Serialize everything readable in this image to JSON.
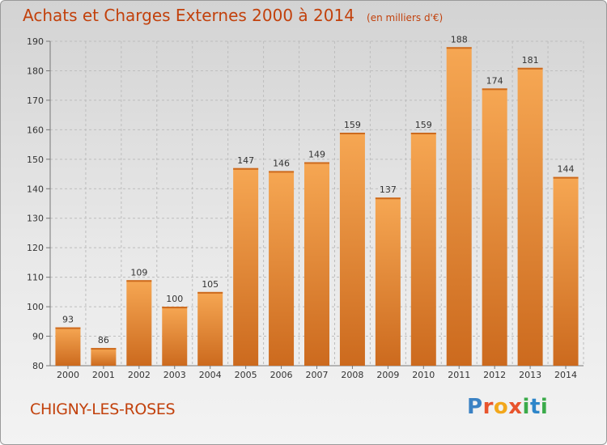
{
  "header": {
    "title": "Achats et Charges Externes 2000 à 2014",
    "unit": "(en milliers d'€)"
  },
  "footer": {
    "place": "CHIGNY-LES-ROSES",
    "brand": "Proxiti",
    "brand_colors": [
      "#3b82c4",
      "#e8542d",
      "#f2a71b",
      "#e8542d",
      "#3bab4a",
      "#2e86c9",
      "#3bab4a"
    ]
  },
  "colors": {
    "bar": "#e8822d",
    "bar_light": "#f6a753",
    "bar_dark": "#cc6a1e",
    "title": "#c2410c",
    "grid": "#bdbdbd"
  },
  "chart_data": {
    "type": "bar",
    "title": "Achats et Charges Externes 2000 à 2014",
    "categories": [
      "2000",
      "2001",
      "2002",
      "2003",
      "2004",
      "2005",
      "2006",
      "2007",
      "2008",
      "2009",
      "2010",
      "2011",
      "2012",
      "2013",
      "2014"
    ],
    "values": [
      93,
      86,
      109,
      100,
      105,
      147,
      146,
      149,
      159,
      137,
      159,
      188,
      174,
      181,
      144
    ],
    "ylim": [
      80,
      190
    ],
    "yticks": [
      80,
      90,
      100,
      110,
      120,
      130,
      140,
      150,
      160,
      170,
      180,
      190
    ],
    "grid": true
  }
}
